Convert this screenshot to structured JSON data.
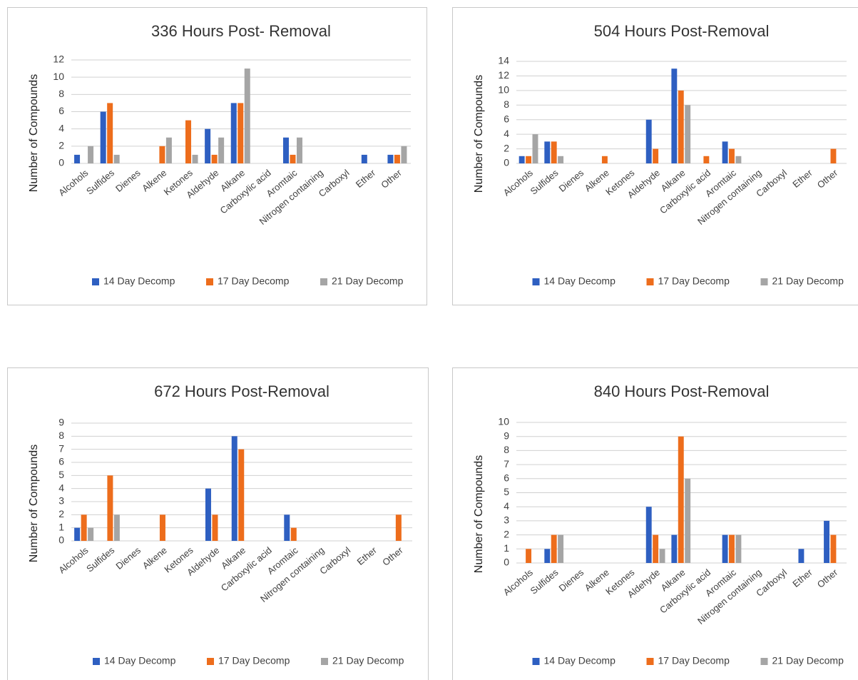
{
  "chart_data": [
    {
      "type": "bar",
      "title": "336 Hours Post- Removal",
      "y_label": "Number of Compounds",
      "categories": [
        "Alcohols",
        "Sulfides",
        "Dienes",
        "Alkene",
        "Ketones",
        "Aldehyde",
        "Alkane",
        "Carboxylic acid",
        "Aromtaic",
        "Nitrogen containing",
        "Carboxyl",
        "Ether",
        "Other"
      ],
      "series": [
        {
          "name": "14 Day Decomp",
          "color": "#2e5fc1",
          "values": [
            1,
            6,
            0,
            0,
            0,
            4,
            7,
            0,
            3,
            0,
            0,
            1,
            1
          ]
        },
        {
          "name": "17 Day Decomp",
          "color": "#ed6d1c",
          "values": [
            0,
            7,
            0,
            2,
            5,
            1,
            7,
            0,
            1,
            0,
            0,
            0,
            1
          ]
        },
        {
          "name": "21 Day Decomp",
          "color": "#a5a5a5",
          "values": [
            2,
            1,
            0,
            3,
            1,
            3,
            11,
            0,
            3,
            0,
            0,
            0,
            2
          ]
        }
      ],
      "ylim": [
        0,
        12
      ],
      "yticks": [
        0,
        2,
        4,
        6,
        8,
        10,
        12
      ],
      "grid": true,
      "legend": "bottom"
    },
    {
      "type": "bar",
      "title": "504 Hours Post-Removal",
      "y_label": "Number of Compounds",
      "categories": [
        "Alcohols",
        "Sulfides",
        "Dienes",
        "Alkene",
        "Ketones",
        "Aldehyde",
        "Alkane",
        "Carboxylic acid",
        "Aromtaic",
        "Nitrogen containing",
        "Carboxyl",
        "Ether",
        "Other"
      ],
      "series": [
        {
          "name": "14 Day Decomp",
          "color": "#2e5fc1",
          "values": [
            1,
            3,
            0,
            0,
            0,
            6,
            13,
            0,
            3,
            0,
            0,
            0,
            0
          ]
        },
        {
          "name": "17 Day Decomp",
          "color": "#ed6d1c",
          "values": [
            1,
            3,
            0,
            1,
            0,
            2,
            10,
            1,
            2,
            0,
            0,
            0,
            2
          ]
        },
        {
          "name": "21 Day Decomp",
          "color": "#a5a5a5",
          "values": [
            4,
            1,
            0,
            0,
            0,
            0,
            8,
            0,
            1,
            0,
            0,
            0,
            0
          ]
        }
      ],
      "ylim": [
        0,
        14
      ],
      "yticks": [
        0,
        2,
        4,
        6,
        8,
        10,
        12,
        14
      ],
      "grid": true,
      "legend": "bottom"
    },
    {
      "type": "bar",
      "title": "672 Hours Post-Removal",
      "y_label": "Number of Compounds",
      "categories": [
        "Alcohols",
        "Sulfides",
        "Dienes",
        "Alkene",
        "Ketones",
        "Aldehyde",
        "Alkane",
        "Carboxylic acid",
        "Aromtaic",
        "Nitrogen containing",
        "Carboxyl",
        "Ether",
        "Other"
      ],
      "series": [
        {
          "name": "14 Day Decomp",
          "color": "#2e5fc1",
          "values": [
            1,
            0,
            0,
            0,
            0,
            4,
            8,
            0,
            2,
            0,
            0,
            0,
            0
          ]
        },
        {
          "name": "17 Day Decomp",
          "color": "#ed6d1c",
          "values": [
            2,
            5,
            0,
            2,
            0,
            2,
            7,
            0,
            1,
            0,
            0,
            0,
            2
          ]
        },
        {
          "name": "21 Day Decomp",
          "color": "#a5a5a5",
          "values": [
            1,
            2,
            0,
            0,
            0,
            0,
            0,
            0,
            0,
            0,
            0,
            0,
            0
          ]
        }
      ],
      "ylim": [
        0,
        9
      ],
      "yticks": [
        0,
        1,
        2,
        3,
        4,
        5,
        6,
        7,
        8,
        9
      ],
      "grid": true,
      "legend": "bottom"
    },
    {
      "type": "bar",
      "title": "840 Hours Post-Removal",
      "y_label": "Number of Compounds",
      "categories": [
        "Alcohols",
        "Sulfides",
        "Dienes",
        "Alkene",
        "Ketones",
        "Aldehyde",
        "Alkane",
        "Carboxylic acid",
        "Aromtaic",
        "Nitrogen containing",
        "Carboxyl",
        "Ether",
        "Other"
      ],
      "series": [
        {
          "name": "14 Day Decomp",
          "color": "#2e5fc1",
          "values": [
            0,
            1,
            0,
            0,
            0,
            4,
            2,
            0,
            2,
            0,
            0,
            1,
            3
          ]
        },
        {
          "name": "17 Day Decomp",
          "color": "#ed6d1c",
          "values": [
            1,
            2,
            0,
            0,
            0,
            2,
            9,
            0,
            2,
            0,
            0,
            0,
            2
          ]
        },
        {
          "name": "21 Day Decomp",
          "color": "#a5a5a5",
          "values": [
            0,
            2,
            0,
            0,
            0,
            1,
            6,
            0,
            2,
            0,
            0,
            0,
            0
          ]
        }
      ],
      "ylim": [
        0,
        10
      ],
      "yticks": [
        0,
        1,
        2,
        3,
        4,
        5,
        6,
        7,
        8,
        9,
        10
      ],
      "grid": true,
      "legend": "bottom"
    }
  ]
}
